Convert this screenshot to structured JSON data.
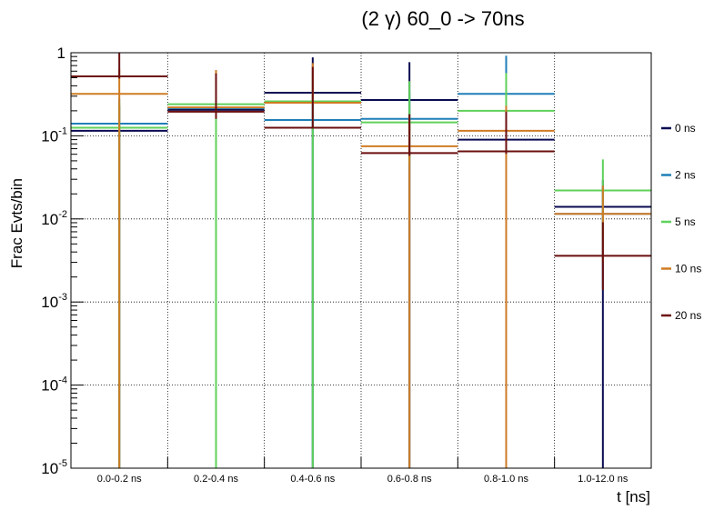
{
  "chart_data": {
    "type": "bar",
    "title": "(2 γ) 60_0 -> 70ns",
    "xlabel": "t [ns]",
    "ylabel": "Frac Evts/bin",
    "yscale": "log",
    "ylim": [
      1e-05,
      1
    ],
    "grid": true,
    "legend_position": "right",
    "categories": [
      "0.0-0.2 ns",
      "0.2-0.4 ns",
      "0.4-0.6 ns",
      "0.6-0.8 ns",
      "0.8-1.0 ns",
      "1.0-12.0 ns"
    ],
    "y_ticks": [
      {
        "base": "10",
        "exp": "-5",
        "value": 1e-05
      },
      {
        "base": "10",
        "exp": "-4",
        "value": 0.0001
      },
      {
        "base": "10",
        "exp": "-3",
        "value": 0.001
      },
      {
        "base": "10",
        "exp": "-2",
        "value": 0.01
      },
      {
        "base": "10",
        "exp": "-1",
        "value": 0.1
      },
      {
        "base": "1",
        "exp": "",
        "value": 1
      }
    ],
    "series": [
      {
        "name": "0 ns",
        "color": "#0b0b52",
        "values": [
          0.115,
          0.205,
          0.33,
          0.27,
          0.09,
          0.014
        ],
        "err_low": [
          0.115,
          0.205,
          0.33,
          0.27,
          0.09,
          0.014
        ],
        "err_high": [
          0.115,
          0.205,
          0.55,
          0.5,
          0.14,
          0.0155
        ]
      },
      {
        "name": "2 ns",
        "color": "#1f7fb8",
        "values": [
          0.14,
          0.215,
          0.155,
          0.16,
          0.32,
          0.0115
        ],
        "err_low": [
          0.14,
          0.215,
          0.155,
          0.16,
          0.1,
          0.01
        ],
        "err_high": [
          0.14,
          0.215,
          0.155,
          0.16,
          0.6,
          0.013
        ]
      },
      {
        "name": "5 ns",
        "color": "#5fd15a",
        "values": [
          0.125,
          0.24,
          0.26,
          0.145,
          0.2,
          0.022
        ],
        "err_low": [
          0.125,
          0.24,
          0.26,
          0.1,
          0.11,
          0.016
        ],
        "err_high": [
          0.125,
          0.24,
          0.26,
          0.31,
          0.37,
          0.03
        ]
      },
      {
        "name": "10 ns",
        "color": "#cf7b24",
        "values": [
          0.32,
          0.22,
          0.25,
          0.075,
          0.115,
          0.0115
        ],
        "err_low": [
          0.32,
          0.028,
          1e-05,
          0.075,
          0.115,
          0.0085
        ],
        "err_high": [
          0.32,
          0.4,
          0.5,
          0.075,
          0.115,
          0.0135
        ]
      },
      {
        "name": "20 ns",
        "color": "#6b0f0f",
        "values": [
          0.52,
          0.195,
          0.125,
          0.062,
          0.065,
          0.0036
        ],
        "err_low": [
          0.031,
          0.035,
          1e-05,
          0.0045,
          0.0044,
          0.0022
        ],
        "err_high": [
          1.0,
          0.37,
          0.55,
          0.12,
          0.13,
          0.0055
        ]
      }
    ]
  }
}
